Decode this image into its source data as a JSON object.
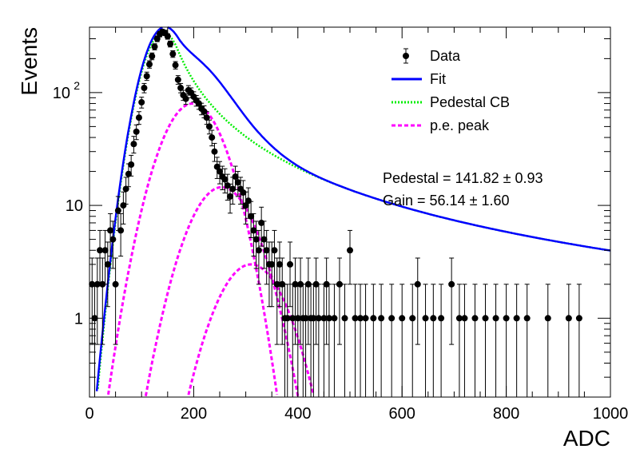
{
  "chart_data": {
    "type": "scatter",
    "title": "",
    "xlabel": "ADC",
    "ylabel": "Events",
    "xlim": [
      0,
      1000
    ],
    "ylim": [
      0.2,
      380
    ],
    "yscale": "log",
    "grid": false,
    "legend_position": "top-right",
    "x_ticks": [
      "0",
      "200",
      "400",
      "600",
      "800",
      "1000"
    ],
    "y_ticks": [
      {
        "value": 1,
        "label": "1"
      },
      {
        "value": 10,
        "label": "10"
      },
      {
        "value": 100,
        "label": "10",
        "exponent": "2"
      }
    ],
    "colors": {
      "data": "#000000",
      "fit": "#0000ff",
      "pedestal": "#00ee00",
      "pe_peak": "#ff00ff"
    },
    "legend": [
      {
        "key": "data",
        "label": "Data",
        "style": "marker"
      },
      {
        "key": "fit",
        "label": "Fit",
        "style": "solid"
      },
      {
        "key": "pedestal",
        "label": "Pedestal CB",
        "style": "dotted"
      },
      {
        "key": "pe_peak",
        "label": "p.e. peak",
        "style": "dashed"
      }
    ],
    "annotations": [
      {
        "label": "Pedestal = 141.82",
        "pm": "±",
        "value": "0.93"
      },
      {
        "label": "Gain = 56.14",
        "pm": "±",
        "value": "1.60"
      }
    ],
    "data_points": [
      {
        "x": 5,
        "y": 2
      },
      {
        "x": 10,
        "y": 1
      },
      {
        "x": 15,
        "y": 2
      },
      {
        "x": 20,
        "y": 4
      },
      {
        "x": 25,
        "y": 2
      },
      {
        "x": 30,
        "y": 4
      },
      {
        "x": 35,
        "y": 3
      },
      {
        "x": 40,
        "y": 6
      },
      {
        "x": 45,
        "y": 5
      },
      {
        "x": 50,
        "y": 2
      },
      {
        "x": 55,
        "y": 9
      },
      {
        "x": 60,
        "y": 6
      },
      {
        "x": 65,
        "y": 10
      },
      {
        "x": 70,
        "y": 14
      },
      {
        "x": 75,
        "y": 19
      },
      {
        "x": 80,
        "y": 23
      },
      {
        "x": 85,
        "y": 35
      },
      {
        "x": 90,
        "y": 45
      },
      {
        "x": 95,
        "y": 60
      },
      {
        "x": 100,
        "y": 82
      },
      {
        "x": 105,
        "y": 110
      },
      {
        "x": 110,
        "y": 140
      },
      {
        "x": 115,
        "y": 178
      },
      {
        "x": 120,
        "y": 210
      },
      {
        "x": 125,
        "y": 255
      },
      {
        "x": 130,
        "y": 300
      },
      {
        "x": 135,
        "y": 330
      },
      {
        "x": 140,
        "y": 345
      },
      {
        "x": 145,
        "y": 338
      },
      {
        "x": 150,
        "y": 315
      },
      {
        "x": 155,
        "y": 270
      },
      {
        "x": 160,
        "y": 220
      },
      {
        "x": 165,
        "y": 175
      },
      {
        "x": 170,
        "y": 130
      },
      {
        "x": 175,
        "y": 110
      },
      {
        "x": 180,
        "y": 95
      },
      {
        "x": 185,
        "y": 88
      },
      {
        "x": 190,
        "y": 105
      },
      {
        "x": 195,
        "y": 100
      },
      {
        "x": 200,
        "y": 92
      },
      {
        "x": 205,
        "y": 85
      },
      {
        "x": 210,
        "y": 80
      },
      {
        "x": 215,
        "y": 72
      },
      {
        "x": 220,
        "y": 68
      },
      {
        "x": 225,
        "y": 60
      },
      {
        "x": 230,
        "y": 50
      },
      {
        "x": 235,
        "y": 40
      },
      {
        "x": 240,
        "y": 30
      },
      {
        "x": 245,
        "y": 22
      },
      {
        "x": 250,
        "y": 20
      },
      {
        "x": 255,
        "y": 18
      },
      {
        "x": 260,
        "y": 17
      },
      {
        "x": 265,
        "y": 15
      },
      {
        "x": 270,
        "y": 12
      },
      {
        "x": 275,
        "y": 14
      },
      {
        "x": 280,
        "y": 18
      },
      {
        "x": 285,
        "y": 16
      },
      {
        "x": 290,
        "y": 14
      },
      {
        "x": 295,
        "y": 13
      },
      {
        "x": 300,
        "y": 10
      },
      {
        "x": 305,
        "y": 11
      },
      {
        "x": 310,
        "y": 8
      },
      {
        "x": 315,
        "y": 6
      },
      {
        "x": 320,
        "y": 5
      },
      {
        "x": 325,
        "y": 4
      },
      {
        "x": 330,
        "y": 7
      },
      {
        "x": 335,
        "y": 5
      },
      {
        "x": 340,
        "y": 4
      },
      {
        "x": 345,
        "y": 3
      },
      {
        "x": 350,
        "y": 3
      },
      {
        "x": 355,
        "y": 4
      },
      {
        "x": 360,
        "y": 2
      },
      {
        "x": 365,
        "y": 3
      },
      {
        "x": 370,
        "y": 2
      },
      {
        "x": 375,
        "y": 1
      },
      {
        "x": 380,
        "y": 1
      },
      {
        "x": 385,
        "y": 3
      },
      {
        "x": 390,
        "y": 1
      },
      {
        "x": 395,
        "y": 2
      },
      {
        "x": 400,
        "y": 1
      },
      {
        "x": 405,
        "y": 2
      },
      {
        "x": 410,
        "y": 1
      },
      {
        "x": 415,
        "y": 1
      },
      {
        "x": 420,
        "y": 2
      },
      {
        "x": 425,
        "y": 1
      },
      {
        "x": 430,
        "y": 1
      },
      {
        "x": 435,
        "y": 2
      },
      {
        "x": 440,
        "y": 1
      },
      {
        "x": 450,
        "y": 1
      },
      {
        "x": 455,
        "y": 2
      },
      {
        "x": 460,
        "y": 1
      },
      {
        "x": 470,
        "y": 1
      },
      {
        "x": 480,
        "y": 2
      },
      {
        "x": 490,
        "y": 1
      },
      {
        "x": 500,
        "y": 4
      },
      {
        "x": 510,
        "y": 1
      },
      {
        "x": 520,
        "y": 1
      },
      {
        "x": 530,
        "y": 1
      },
      {
        "x": 545,
        "y": 1
      },
      {
        "x": 560,
        "y": 1
      },
      {
        "x": 580,
        "y": 1
      },
      {
        "x": 600,
        "y": 1
      },
      {
        "x": 620,
        "y": 1
      },
      {
        "x": 630,
        "y": 2
      },
      {
        "x": 645,
        "y": 1
      },
      {
        "x": 660,
        "y": 1
      },
      {
        "x": 675,
        "y": 1
      },
      {
        "x": 695,
        "y": 2
      },
      {
        "x": 710,
        "y": 1
      },
      {
        "x": 720,
        "y": 1
      },
      {
        "x": 740,
        "y": 1
      },
      {
        "x": 760,
        "y": 1
      },
      {
        "x": 780,
        "y": 1
      },
      {
        "x": 800,
        "y": 1
      },
      {
        "x": 820,
        "y": 1
      },
      {
        "x": 840,
        "y": 1
      },
      {
        "x": 880,
        "y": 1
      },
      {
        "x": 920,
        "y": 1
      },
      {
        "x": 940,
        "y": 1
      }
    ],
    "pedestal_fit": {
      "mean": 141.82,
      "mean_err": 0.93,
      "peak": 340,
      "sigma": 33,
      "tail_alpha": 0.85,
      "tail_n": 1.5
    },
    "gain_fit": {
      "gain": 56.14,
      "gain_err": 1.6
    },
    "pe_peaks": [
      {
        "mean": 198,
        "amplitude": 80,
        "sigma": 47
      },
      {
        "mean": 254,
        "amplitude": 14.5,
        "sigma": 50
      },
      {
        "mean": 310,
        "amplitude": 3.0,
        "sigma": 52
      }
    ]
  }
}
